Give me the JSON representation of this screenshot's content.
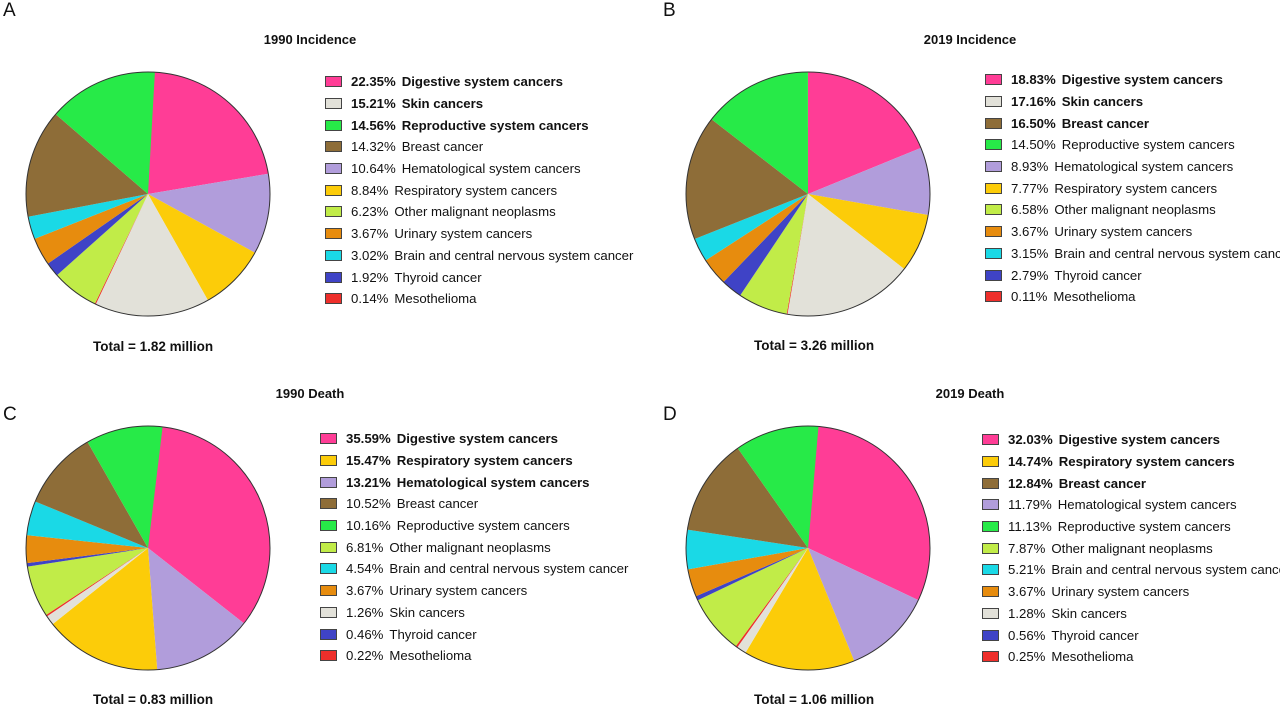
{
  "chart_data": [
    {
      "type": "pie",
      "panel": "A",
      "title": "1990 Incidence",
      "total": "Total = 1.82 million",
      "slices": [
        {
          "label": "Digestive system cancers",
          "pct_text": "22.35%",
          "value": 22.35,
          "color": "#ff3d96",
          "bold": true
        },
        {
          "label": "Skin cancers",
          "pct_text": "15.21%",
          "value": 15.21,
          "color": "#e2e1d9",
          "bold": true
        },
        {
          "label": "Reproductive system cancers",
          "pct_text": "14.56%",
          "value": 14.56,
          "color": "#27ea48",
          "bold": true
        },
        {
          "label": "Breast cancer",
          "pct_text": "14.32%",
          "value": 14.32,
          "color": "#8e6d38",
          "bold": false
        },
        {
          "label": "Hematological system cancers",
          "pct_text": "10.64%",
          "value": 10.64,
          "color": "#b19ddb",
          "bold": false
        },
        {
          "label": "Respiratory system cancers",
          "pct_text": "8.84%",
          "value": 8.84,
          "color": "#fccc09",
          "bold": false
        },
        {
          "label": "Other malignant neoplasms",
          "pct_text": "6.23%",
          "value": 6.23,
          "color": "#c1ec48",
          "bold": false
        },
        {
          "label": "Urinary system cancers",
          "pct_text": "3.67%",
          "value": 3.67,
          "color": "#e78c0e",
          "bold": false
        },
        {
          "label": "Brain and central nervous system cancer",
          "pct_text": "3.02%",
          "value": 3.02,
          "color": "#1ad9e6",
          "bold": false
        },
        {
          "label": "Thyroid cancer",
          "pct_text": "1.92%",
          "value": 1.92,
          "color": "#3f43c6",
          "bold": false
        },
        {
          "label": "Mesothelioma",
          "pct_text": "0.14%",
          "value": 0.14,
          "color": "#ee2f2b",
          "bold": false
        }
      ],
      "pie_order": [
        "Digestive system cancers",
        "Hematological system cancers",
        "Respiratory system cancers",
        "Skin cancers",
        "Mesothelioma",
        "Other malignant neoplasms",
        "Thyroid cancer",
        "Urinary system cancers",
        "Brain and central nervous system cancer",
        "Breast cancer",
        "Reproductive system cancers"
      ]
    },
    {
      "type": "pie",
      "panel": "B",
      "title": "2019 Incidence",
      "total": "Total = 3.26 million",
      "slices": [
        {
          "label": "Digestive system cancers",
          "pct_text": "18.83%",
          "value": 18.83,
          "color": "#ff3d96",
          "bold": true
        },
        {
          "label": "Skin cancers",
          "pct_text": "17.16%",
          "value": 17.16,
          "color": "#e2e1d9",
          "bold": true
        },
        {
          "label": "Breast cancer",
          "pct_text": "16.50%",
          "value": 16.5,
          "color": "#8e6d38",
          "bold": true
        },
        {
          "label": "Reproductive system cancers",
          "pct_text": "14.50%",
          "value": 14.5,
          "color": "#27ea48",
          "bold": false
        },
        {
          "label": "Hematological system cancers",
          "pct_text": "8.93%",
          "value": 8.93,
          "color": "#b19ddb",
          "bold": false
        },
        {
          "label": "Respiratory system cancers",
          "pct_text": "7.77%",
          "value": 7.77,
          "color": "#fccc09",
          "bold": false
        },
        {
          "label": "Other malignant neoplasms",
          "pct_text": "6.58%",
          "value": 6.58,
          "color": "#c1ec48",
          "bold": false
        },
        {
          "label": "Urinary system cancers",
          "pct_text": "3.67%",
          "value": 3.67,
          "color": "#e78c0e",
          "bold": false
        },
        {
          "label": "Brain and central nervous system cancer",
          "pct_text": "3.15%",
          "value": 3.15,
          "color": "#1ad9e6",
          "bold": false
        },
        {
          "label": "Thyroid cancer",
          "pct_text": "2.79%",
          "value": 2.79,
          "color": "#3f43c6",
          "bold": false
        },
        {
          "label": "Mesothelioma",
          "pct_text": "0.11%",
          "value": 0.11,
          "color": "#ee2f2b",
          "bold": false
        }
      ],
      "pie_order": [
        "Digestive system cancers",
        "Hematological system cancers",
        "Respiratory system cancers",
        "Skin cancers",
        "Mesothelioma",
        "Other malignant neoplasms",
        "Thyroid cancer",
        "Urinary system cancers",
        "Brain and central nervous system cancer",
        "Breast cancer",
        "Reproductive system cancers"
      ]
    },
    {
      "type": "pie",
      "panel": "C",
      "title": "1990 Death",
      "total": "Total = 0.83 million",
      "slices": [
        {
          "label": "Digestive system cancers",
          "pct_text": "35.59%",
          "value": 35.59,
          "color": "#ff3d96",
          "bold": true
        },
        {
          "label": "Respiratory system cancers",
          "pct_text": "15.47%",
          "value": 15.47,
          "color": "#fccc09",
          "bold": true
        },
        {
          "label": "Hematological system cancers",
          "pct_text": "13.21%",
          "value": 13.21,
          "color": "#b19ddb",
          "bold": true
        },
        {
          "label": "Breast cancer",
          "pct_text": "10.52%",
          "value": 10.52,
          "color": "#8e6d38",
          "bold": false
        },
        {
          "label": "Reproductive system cancers",
          "pct_text": "10.16%",
          "value": 10.16,
          "color": "#27ea48",
          "bold": false
        },
        {
          "label": "Other malignant neoplasms",
          "pct_text": "6.81%",
          "value": 6.81,
          "color": "#c1ec48",
          "bold": false
        },
        {
          "label": "Brain and central nervous system cancer",
          "pct_text": "4.54%",
          "value": 4.54,
          "color": "#1ad9e6",
          "bold": false
        },
        {
          "label": "Urinary system cancers",
          "pct_text": "3.67%",
          "value": 3.67,
          "color": "#e78c0e",
          "bold": false
        },
        {
          "label": "Skin cancers",
          "pct_text": "1.26%",
          "value": 1.26,
          "color": "#e2e1d9",
          "bold": false
        },
        {
          "label": "Thyroid cancer",
          "pct_text": "0.46%",
          "value": 0.46,
          "color": "#3f43c6",
          "bold": false
        },
        {
          "label": "Mesothelioma",
          "pct_text": "0.22%",
          "value": 0.22,
          "color": "#ee2f2b",
          "bold": false
        }
      ],
      "pie_order": [
        "Digestive system cancers",
        "Hematological system cancers",
        "Respiratory system cancers",
        "Skin cancers",
        "Mesothelioma",
        "Other malignant neoplasms",
        "Thyroid cancer",
        "Urinary system cancers",
        "Brain and central nervous system cancer",
        "Breast cancer",
        "Reproductive system cancers"
      ]
    },
    {
      "type": "pie",
      "panel": "D",
      "title": "2019 Death",
      "total": "Total = 1.06 million",
      "slices": [
        {
          "label": "Digestive system cancers",
          "pct_text": "32.03%",
          "value": 32.03,
          "color": "#ff3d96",
          "bold": true
        },
        {
          "label": "Respiratory system cancers",
          "pct_text": "14.74%",
          "value": 14.74,
          "color": "#fccc09",
          "bold": true
        },
        {
          "label": "Breast cancer",
          "pct_text": "12.84%",
          "value": 12.84,
          "color": "#8e6d38",
          "bold": true
        },
        {
          "label": "Hematological system cancers",
          "pct_text": "11.79%",
          "value": 11.79,
          "color": "#b19ddb",
          "bold": false
        },
        {
          "label": "Reproductive system cancers",
          "pct_text": "11.13%",
          "value": 11.13,
          "color": "#27ea48",
          "bold": false
        },
        {
          "label": "Other malignant neoplasms",
          "pct_text": "7.87%",
          "value": 7.87,
          "color": "#c1ec48",
          "bold": false
        },
        {
          "label": "Brain and central nervous system cancer",
          "pct_text": "5.21%",
          "value": 5.21,
          "color": "#1ad9e6",
          "bold": false
        },
        {
          "label": "Urinary system cancers",
          "pct_text": "3.67%",
          "value": 3.67,
          "color": "#e78c0e",
          "bold": false
        },
        {
          "label": "Skin cancers",
          "pct_text": "1.28%",
          "value": 1.28,
          "color": "#e2e1d9",
          "bold": false
        },
        {
          "label": "Thyroid cancer",
          "pct_text": "0.56%",
          "value": 0.56,
          "color": "#3f43c6",
          "bold": false
        },
        {
          "label": "Mesothelioma",
          "pct_text": "0.25%",
          "value": 0.25,
          "color": "#ee2f2b",
          "bold": false
        }
      ],
      "pie_order": [
        "Digestive system cancers",
        "Hematological system cancers",
        "Respiratory system cancers",
        "Skin cancers",
        "Mesothelioma",
        "Other malignant neoplasms",
        "Thyroid cancer",
        "Urinary system cancers",
        "Brain and central nervous system cancer",
        "Breast cancer",
        "Reproductive system cancers"
      ]
    }
  ]
}
